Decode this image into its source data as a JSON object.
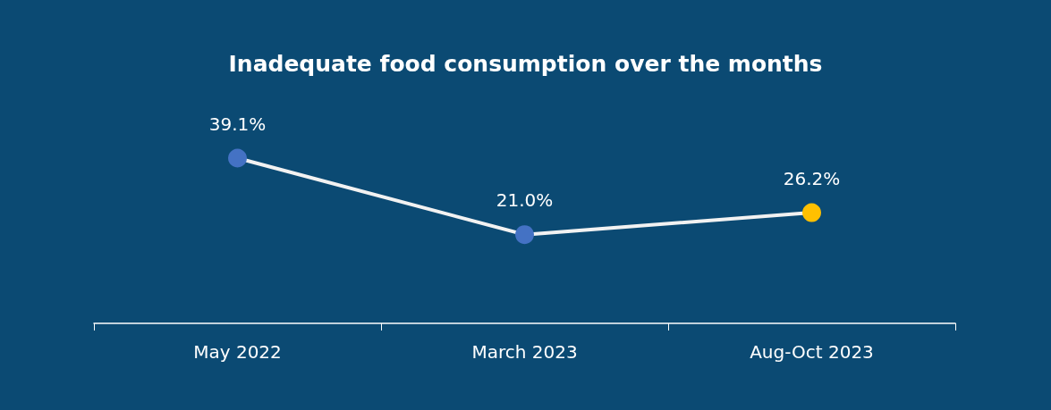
{
  "chart_data": {
    "type": "line",
    "title": "Inadequate food consumption over the months",
    "categories": [
      "May 2022",
      "March 2023",
      "Aug-Oct 2023"
    ],
    "series": [
      {
        "color": "#f2f2f2",
        "colors": [
          "#4472c4",
          "#4472c4",
          "#ffc000"
        ],
        "values": [
          39.1,
          21.0,
          26.2
        ],
        "value_labels": [
          "39.1%",
          "21.0%",
          "26.2%"
        ]
      }
    ],
    "marker": "circle",
    "line_style": "solid"
  }
}
